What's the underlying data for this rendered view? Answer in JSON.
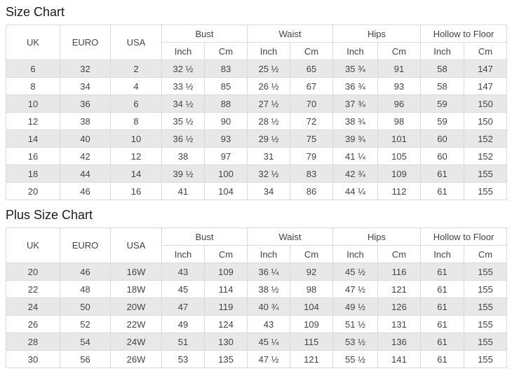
{
  "colors": {
    "background": "#ffffff",
    "border": "#d9d9d9",
    "row_stripe": "#e8e8e8",
    "text": "#434343",
    "title_text": "#1a1a1a"
  },
  "chart_data": [
    {
      "type": "table",
      "title": "Size Chart",
      "main_columns": [
        "UK",
        "EURO",
        "USA"
      ],
      "groups": [
        {
          "label": "Bust",
          "sub": [
            "Inch",
            "Cm"
          ]
        },
        {
          "label": "Waist",
          "sub": [
            "Inch",
            "Cm"
          ]
        },
        {
          "label": "Hips",
          "sub": [
            "Inch",
            "Cm"
          ]
        },
        {
          "label": "Hollow to Floor",
          "sub": [
            "Inch",
            "Cm"
          ]
        }
      ],
      "rows": [
        [
          "6",
          "32",
          "2",
          "32 ½",
          "83",
          "25 ½",
          "65",
          "35 ¾",
          "91",
          "58",
          "147"
        ],
        [
          "8",
          "34",
          "4",
          "33 ½",
          "85",
          "26 ½",
          "67",
          "36 ¾",
          "93",
          "58",
          "147"
        ],
        [
          "10",
          "36",
          "6",
          "34 ½",
          "88",
          "27 ½",
          "70",
          "37 ¾",
          "96",
          "59",
          "150"
        ],
        [
          "12",
          "38",
          "8",
          "35 ½",
          "90",
          "28 ½",
          "72",
          "38 ¾",
          "98",
          "59",
          "150"
        ],
        [
          "14",
          "40",
          "10",
          "36 ½",
          "93",
          "29 ½",
          "75",
          "39 ¾",
          "101",
          "60",
          "152"
        ],
        [
          "16",
          "42",
          "12",
          "38",
          "97",
          "31",
          "79",
          "41 ¼",
          "105",
          "60",
          "152"
        ],
        [
          "18",
          "44",
          "14",
          "39 ½",
          "100",
          "32 ½",
          "83",
          "42 ¾",
          "109",
          "61",
          "155"
        ],
        [
          "20",
          "46",
          "16",
          "41",
          "104",
          "34",
          "86",
          "44 ¼",
          "112",
          "61",
          "155"
        ]
      ]
    },
    {
      "type": "table",
      "title": "Plus Size Chart",
      "main_columns": [
        "UK",
        "EURO",
        "USA"
      ],
      "groups": [
        {
          "label": "Bust",
          "sub": [
            "Inch",
            "Cm"
          ]
        },
        {
          "label": "Waist",
          "sub": [
            "Inch",
            "Cm"
          ]
        },
        {
          "label": "Hips",
          "sub": [
            "Inch",
            "Cm"
          ]
        },
        {
          "label": "Hollow to Floor",
          "sub": [
            "Inch",
            "Cm"
          ]
        }
      ],
      "rows": [
        [
          "20",
          "46",
          "16W",
          "43",
          "109",
          "36 ¼",
          "92",
          "45 ½",
          "116",
          "61",
          "155"
        ],
        [
          "22",
          "48",
          "18W",
          "45",
          "114",
          "38 ½",
          "98",
          "47 ½",
          "121",
          "61",
          "155"
        ],
        [
          "24",
          "50",
          "20W",
          "47",
          "119",
          "40 ¾",
          "104",
          "49 ½",
          "126",
          "61",
          "155"
        ],
        [
          "26",
          "52",
          "22W",
          "49",
          "124",
          "43",
          "109",
          "51 ½",
          "131",
          "61",
          "155"
        ],
        [
          "28",
          "54",
          "24W",
          "51",
          "130",
          "45 ¼",
          "115",
          "53 ½",
          "136",
          "61",
          "155"
        ],
        [
          "30",
          "56",
          "26W",
          "53",
          "135",
          "47 ½",
          "121",
          "55 ½",
          "141",
          "61",
          "155"
        ]
      ]
    }
  ]
}
